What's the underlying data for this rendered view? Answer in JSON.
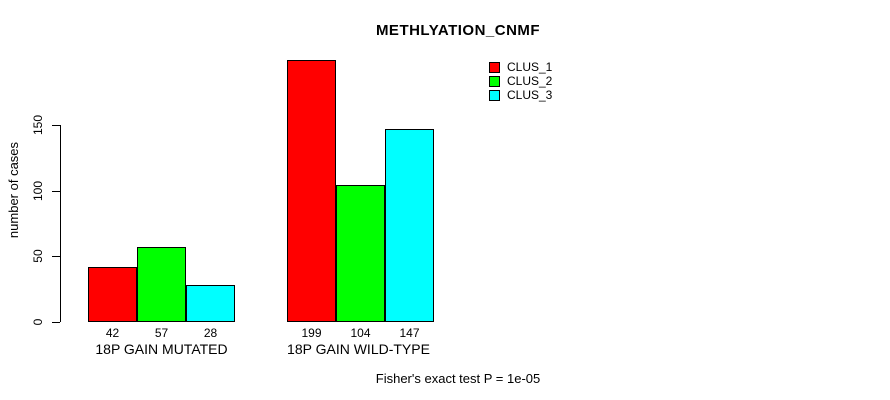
{
  "chart_data": {
    "type": "bar",
    "title": "METHLYATION_CNMF",
    "ylabel": "number of cases",
    "xlabel": "",
    "categories": [
      "18P GAIN MUTATED",
      "18P GAIN WILD-TYPE"
    ],
    "series": [
      {
        "name": "CLUS_1",
        "color": "#ff0000",
        "values": [
          42,
          199
        ]
      },
      {
        "name": "CLUS_2",
        "color": "#00ff00",
        "values": [
          57,
          104
        ]
      },
      {
        "name": "CLUS_3",
        "color": "#00ffff",
        "values": [
          28,
          147
        ]
      }
    ],
    "y_ticks": [
      0,
      50,
      100,
      150
    ],
    "ylim": [
      0,
      150
    ],
    "bar_value_labels_shown": true,
    "grid": false,
    "legend_position": "top-right",
    "footnote": "Fisher's exact test P = 1e-05"
  }
}
